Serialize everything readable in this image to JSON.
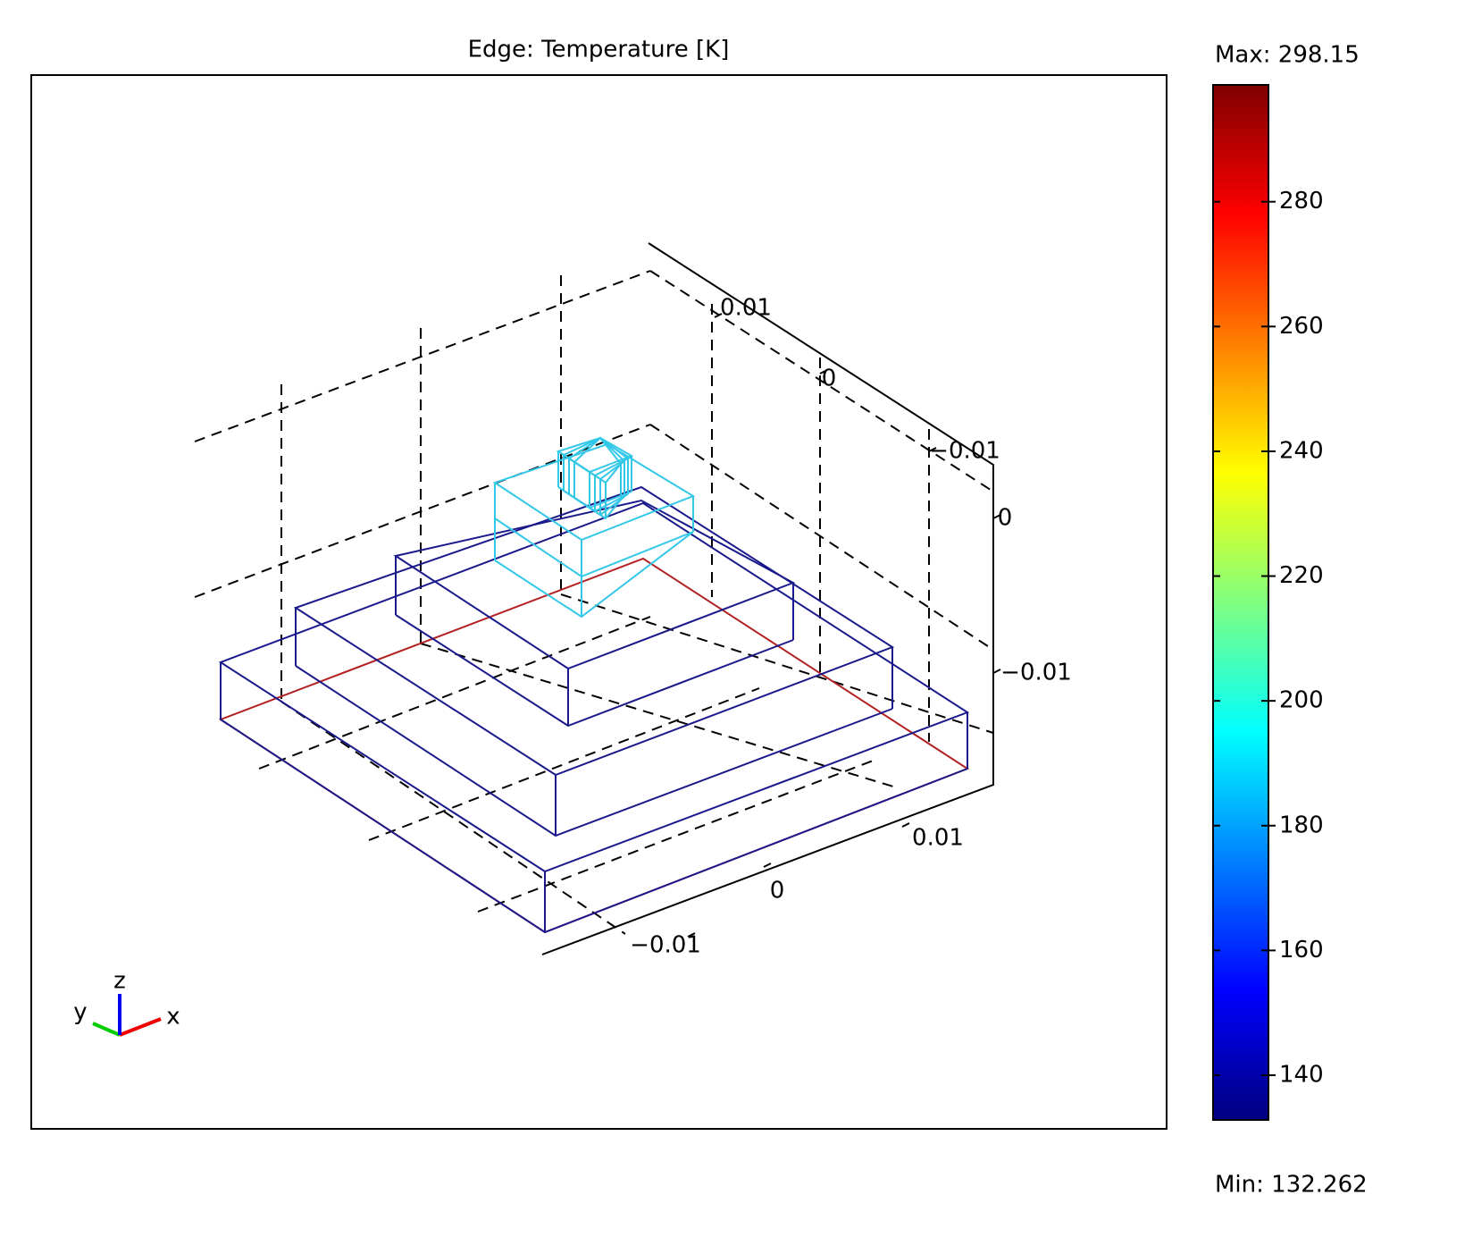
{
  "chart_data": {
    "type": "edge3d",
    "title": "Edge: Temperature [K]",
    "colorbar": {
      "max_label": "Max: 298.15",
      "min_label": "Min: 132.262",
      "clim": [
        132.262,
        298.15
      ],
      "ticks": [
        140,
        160,
        180,
        200,
        220,
        240,
        260,
        280
      ]
    },
    "xticks": [
      {
        "value": -0.01,
        "label": "−0.01"
      },
      0,
      0.01
    ],
    "yticks": [
      0.01,
      0,
      {
        "value": -0.01,
        "label": "−0.01"
      }
    ],
    "zticks": [
      0,
      {
        "value": -0.01,
        "label": "−0.01"
      }
    ],
    "triad": [
      "x",
      "y",
      "z"
    ]
  }
}
